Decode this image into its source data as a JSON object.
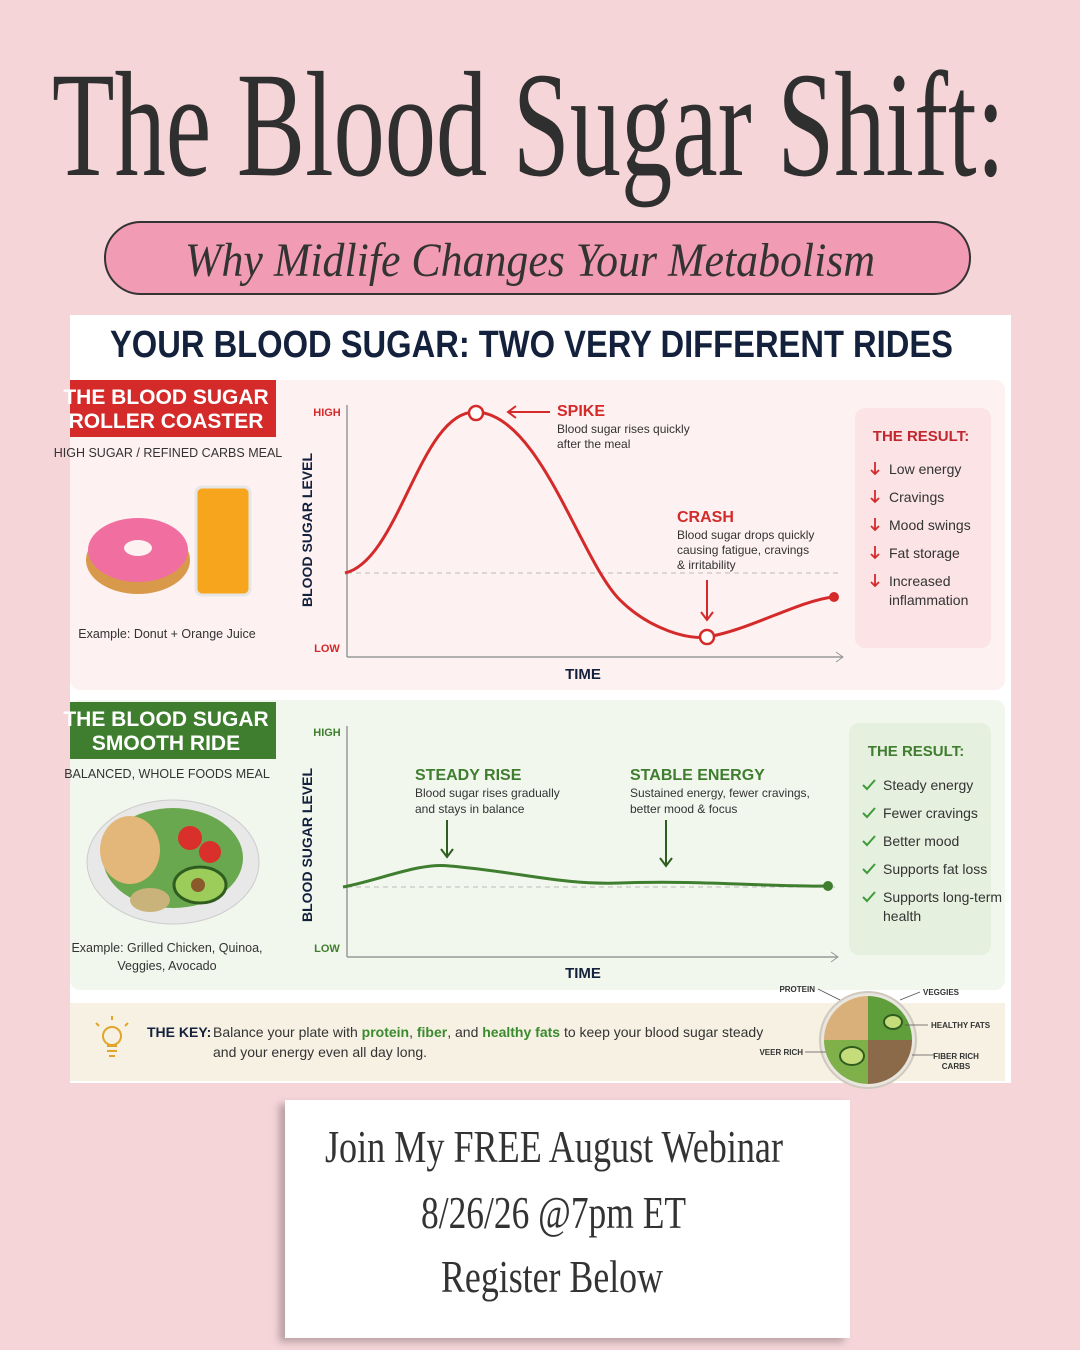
{
  "header": {
    "title": "The Blood Sugar Shift:",
    "subtitle": "Why Midlife Changes Your Metabolism"
  },
  "infographic": {
    "title": "YOUR BLOOD SUGAR: TWO VERY DIFFERENT RIDES",
    "panels": [
      {
        "badge": [
          "THE BLOOD SUGAR",
          "ROLLER COASTER"
        ],
        "meal": "HIGH SUGAR / REFINED CARBS MEAL",
        "example": [
          "Example: Donut + Orange Juice"
        ],
        "y_axis_label": "BLOOD SUGAR LEVEL",
        "high_label": "HIGH",
        "low_label": "LOW",
        "x_axis_label": "TIME",
        "annotations": [
          {
            "title": "SPIKE",
            "lines": [
              "Blood sugar rises quickly",
              "after the meal"
            ]
          },
          {
            "title": "CRASH",
            "lines": [
              "Blood sugar drops quickly",
              "causing fatigue, cravings",
              "& irritability"
            ]
          }
        ],
        "result_title": "THE RESULT:",
        "result_items": [
          [
            "Low energy"
          ],
          [
            "Cravings"
          ],
          [
            "Mood swings"
          ],
          [
            "Fat storage"
          ],
          [
            "Increased",
            "inflammation"
          ]
        ]
      },
      {
        "badge": [
          "THE BLOOD SUGAR",
          "SMOOTH RIDE"
        ],
        "meal": "BALANCED, WHOLE FOODS MEAL",
        "example": [
          "Example: Grilled Chicken, Quinoa,",
          "Veggies, Avocado"
        ],
        "y_axis_label": "BLOOD SUGAR LEVEL",
        "high_label": "HIGH",
        "low_label": "LOW",
        "x_axis_label": "TIME",
        "annotations": [
          {
            "title": "STEADY RISE",
            "lines": [
              "Blood sugar rises gradually",
              "and stays in balance"
            ]
          },
          {
            "title": "STABLE ENERGY",
            "lines": [
              "Sustained energy, fewer cravings,",
              "better mood & focus"
            ]
          }
        ],
        "result_title": "THE RESULT:",
        "result_items": [
          [
            "Steady energy"
          ],
          [
            "Fewer cravings"
          ],
          [
            "Better mood"
          ],
          [
            "Supports fat loss"
          ],
          [
            "Supports long-term",
            "health"
          ]
        ]
      }
    ],
    "key": {
      "label": "THE KEY:",
      "lines": [
        [
          {
            "text": "Balance your plate with "
          },
          {
            "text": "protein",
            "color": "#3a8a2e"
          },
          {
            "text": ", "
          },
          {
            "text": "fiber",
            "color": "#3a8a2e"
          },
          {
            "text": ", and "
          },
          {
            "text": "healthy fats",
            "color": "#3a8a2e"
          },
          {
            "text": " to keep your blood sugar steady"
          }
        ],
        [
          {
            "text": "and your energy even all day long."
          }
        ]
      ],
      "plate_labels": {
        "protein": "PROTEIN",
        "veggies": "VEGGIES",
        "healthy_fats": "HEALTHY FATS",
        "fiber_carbs": [
          "FIBER RICH",
          "CARBS"
        ],
        "fiber_left": "VEER RICH"
      }
    }
  },
  "footer": {
    "lines": [
      "Join My FREE  August Webinar",
      "8/26/26 @7pm ET",
      "Register Below"
    ]
  }
}
